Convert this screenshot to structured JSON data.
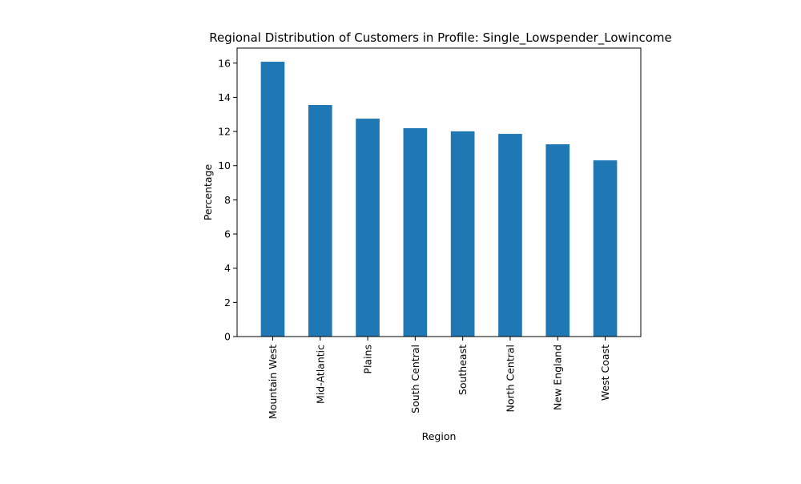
{
  "chart_data": {
    "type": "bar",
    "title": "Regional Distribution of Customers in Profile: Single_Lowspender_Lowincome",
    "xlabel": "Region",
    "ylabel": "Percentage",
    "categories": [
      "Mountain West",
      "Mid-Atlantic",
      "Plains",
      "South Central",
      "Southeast",
      "North Central",
      "New England",
      "West Coast"
    ],
    "values": [
      16.08,
      13.55,
      12.75,
      12.19,
      12.01,
      11.86,
      11.25,
      10.31
    ],
    "ylim": [
      0,
      16.88
    ],
    "yticks": [
      0,
      2,
      4,
      6,
      8,
      10,
      12,
      14,
      16
    ],
    "grid": false,
    "bar_color": "#1f77b4"
  }
}
